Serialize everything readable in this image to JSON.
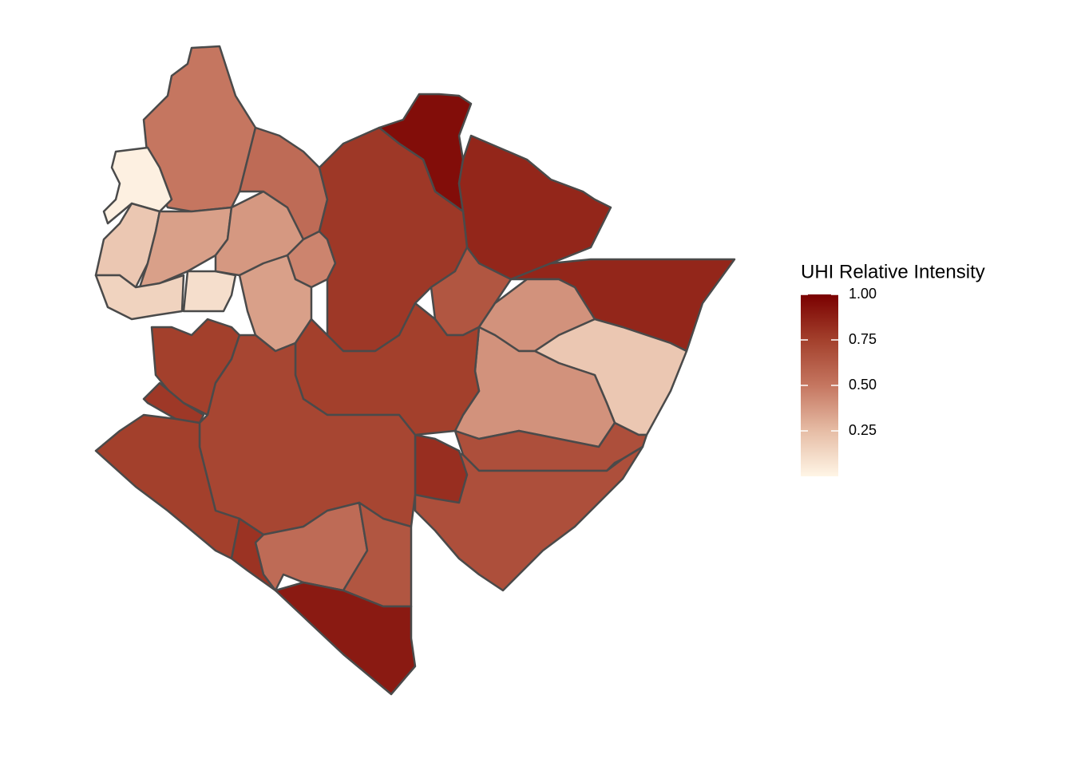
{
  "chart_data": {
    "type": "choropleth",
    "legend_title": "UHI Relative Intensity",
    "limits": [
      0,
      1
    ],
    "palette": [
      "#fff5e6",
      "#e6bca5",
      "#c57660",
      "#a3402c",
      "#7a0000"
    ],
    "ticks": [
      0.25,
      {
        "value": 0.5,
        "label": "0.50"
      },
      0.75,
      {
        "value": 1,
        "label": "1.00"
      }
    ],
    "values": [
      0.5,
      0.02,
      0.2,
      0.35,
      0.15,
      0.1,
      0.38,
      0.55,
      0.45,
      0.75,
      0.78,
      0.35,
      0.95,
      0.85,
      0.78,
      0.65,
      0.85,
      0.4,
      0.2,
      0.4,
      0.68,
      0.68,
      0.82,
      0.75,
      0.72,
      0.75,
      0.55,
      0.65,
      0.9,
      0.8
    ]
  }
}
